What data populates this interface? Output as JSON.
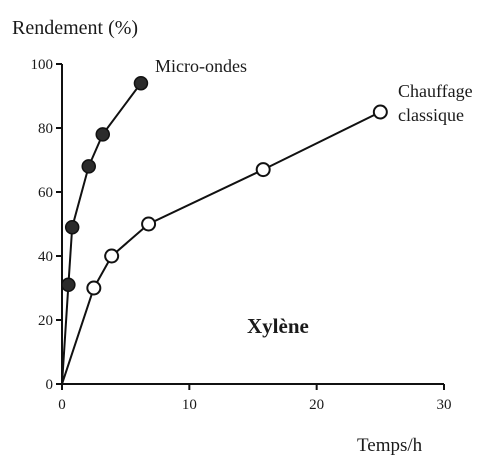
{
  "chart_data": {
    "type": "line",
    "ylabel": "Rendement (%)",
    "xlabel": "Temps/h",
    "xlim": [
      0,
      30
    ],
    "ylim": [
      0,
      100
    ],
    "xticks": [
      0,
      10,
      20,
      30
    ],
    "yticks": [
      0,
      20,
      40,
      60,
      80,
      100
    ],
    "grid": false,
    "annotation": "Xylène",
    "series": [
      {
        "name": "Micro-ondes",
        "marker": "filled-circle",
        "color": "#111111",
        "x": [
          0,
          0.5,
          0.8,
          2.1,
          3.2,
          6.2
        ],
        "y": [
          0,
          31,
          49,
          68,
          78,
          94
        ]
      },
      {
        "name": "Chauffage classique",
        "marker": "open-circle",
        "color": "#111111",
        "x": [
          0,
          2.5,
          3.9,
          6.8,
          15.8,
          25
        ],
        "y": [
          0,
          30,
          40,
          50,
          67,
          85
        ]
      }
    ]
  }
}
